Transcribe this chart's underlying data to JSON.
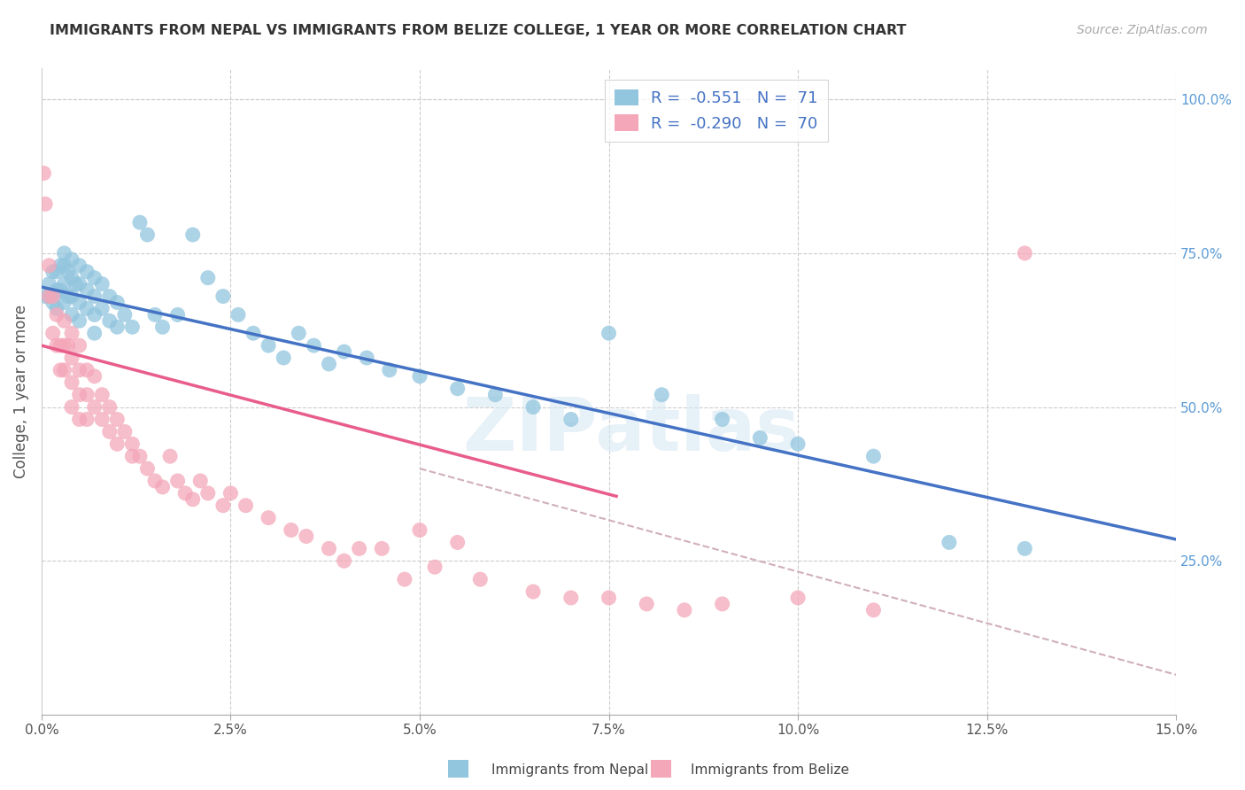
{
  "title": "IMMIGRANTS FROM NEPAL VS IMMIGRANTS FROM BELIZE COLLEGE, 1 YEAR OR MORE CORRELATION CHART",
  "source": "Source: ZipAtlas.com",
  "ylabel": "College, 1 year or more",
  "right_yticks": [
    "100.0%",
    "75.0%",
    "50.0%",
    "25.0%"
  ],
  "right_ytick_vals": [
    1.0,
    0.75,
    0.5,
    0.25
  ],
  "color_nepal": "#92c5de",
  "color_belize": "#f4a7b9",
  "color_nepal_line": "#4472c4",
  "color_belize_line": "#e85d8a",
  "color_dashed": "#d0b0b8",
  "watermark": "ZIPatlas",
  "nepal_scatter_x": [
    0.0005,
    0.001,
    0.001,
    0.0015,
    0.0015,
    0.002,
    0.002,
    0.002,
    0.0025,
    0.0025,
    0.003,
    0.003,
    0.003,
    0.003,
    0.0035,
    0.0035,
    0.004,
    0.004,
    0.004,
    0.004,
    0.0045,
    0.005,
    0.005,
    0.005,
    0.005,
    0.006,
    0.006,
    0.006,
    0.007,
    0.007,
    0.007,
    0.007,
    0.008,
    0.008,
    0.009,
    0.009,
    0.01,
    0.01,
    0.011,
    0.012,
    0.013,
    0.014,
    0.015,
    0.016,
    0.018,
    0.02,
    0.022,
    0.024,
    0.026,
    0.028,
    0.03,
    0.032,
    0.034,
    0.036,
    0.038,
    0.04,
    0.043,
    0.046,
    0.05,
    0.055,
    0.06,
    0.065,
    0.07,
    0.075,
    0.082,
    0.09,
    0.095,
    0.1,
    0.11,
    0.12,
    0.13
  ],
  "nepal_scatter_y": [
    0.68,
    0.7,
    0.68,
    0.72,
    0.67,
    0.72,
    0.69,
    0.66,
    0.73,
    0.69,
    0.75,
    0.73,
    0.7,
    0.67,
    0.72,
    0.68,
    0.74,
    0.71,
    0.68,
    0.65,
    0.7,
    0.73,
    0.7,
    0.67,
    0.64,
    0.72,
    0.69,
    0.66,
    0.71,
    0.68,
    0.65,
    0.62,
    0.7,
    0.66,
    0.68,
    0.64,
    0.67,
    0.63,
    0.65,
    0.63,
    0.8,
    0.78,
    0.65,
    0.63,
    0.65,
    0.78,
    0.71,
    0.68,
    0.65,
    0.62,
    0.6,
    0.58,
    0.62,
    0.6,
    0.57,
    0.59,
    0.58,
    0.56,
    0.55,
    0.53,
    0.52,
    0.5,
    0.48,
    0.62,
    0.52,
    0.48,
    0.45,
    0.44,
    0.42,
    0.28,
    0.27
  ],
  "belize_scatter_x": [
    0.0003,
    0.0005,
    0.001,
    0.001,
    0.0015,
    0.0015,
    0.002,
    0.002,
    0.0025,
    0.0025,
    0.003,
    0.003,
    0.003,
    0.0035,
    0.004,
    0.004,
    0.004,
    0.004,
    0.005,
    0.005,
    0.005,
    0.005,
    0.006,
    0.006,
    0.006,
    0.007,
    0.007,
    0.008,
    0.008,
    0.009,
    0.009,
    0.01,
    0.01,
    0.011,
    0.012,
    0.012,
    0.013,
    0.014,
    0.015,
    0.016,
    0.017,
    0.018,
    0.019,
    0.02,
    0.021,
    0.022,
    0.024,
    0.025,
    0.027,
    0.03,
    0.033,
    0.035,
    0.038,
    0.04,
    0.042,
    0.045,
    0.048,
    0.05,
    0.052,
    0.055,
    0.058,
    0.065,
    0.07,
    0.075,
    0.08,
    0.085,
    0.09,
    0.1,
    0.11,
    0.13
  ],
  "belize_scatter_y": [
    0.88,
    0.83,
    0.73,
    0.68,
    0.68,
    0.62,
    0.65,
    0.6,
    0.6,
    0.56,
    0.64,
    0.6,
    0.56,
    0.6,
    0.62,
    0.58,
    0.54,
    0.5,
    0.6,
    0.56,
    0.52,
    0.48,
    0.56,
    0.52,
    0.48,
    0.55,
    0.5,
    0.52,
    0.48,
    0.5,
    0.46,
    0.48,
    0.44,
    0.46,
    0.44,
    0.42,
    0.42,
    0.4,
    0.38,
    0.37,
    0.42,
    0.38,
    0.36,
    0.35,
    0.38,
    0.36,
    0.34,
    0.36,
    0.34,
    0.32,
    0.3,
    0.29,
    0.27,
    0.25,
    0.27,
    0.27,
    0.22,
    0.3,
    0.24,
    0.28,
    0.22,
    0.2,
    0.19,
    0.19,
    0.18,
    0.17,
    0.18,
    0.19,
    0.17,
    0.75
  ],
  "xlim": [
    0.0,
    0.15
  ],
  "ylim": [
    0.0,
    1.05
  ],
  "nepal_line_x": [
    0.0,
    0.15
  ],
  "nepal_line_y": [
    0.695,
    0.285
  ],
  "belize_line_x": [
    0.0,
    0.076
  ],
  "belize_line_y": [
    0.6,
    0.355
  ],
  "dashed_line_x": [
    0.05,
    0.15
  ],
  "dashed_line_y": [
    0.4,
    0.065
  ],
  "xtick_vals": [
    0.0,
    0.025,
    0.05,
    0.075,
    0.1,
    0.125,
    0.15
  ],
  "xtick_labels": [
    "0.0%",
    "2.5%",
    "5.0%",
    "7.5%",
    "10.0%",
    "12.5%",
    "15.0%"
  ]
}
